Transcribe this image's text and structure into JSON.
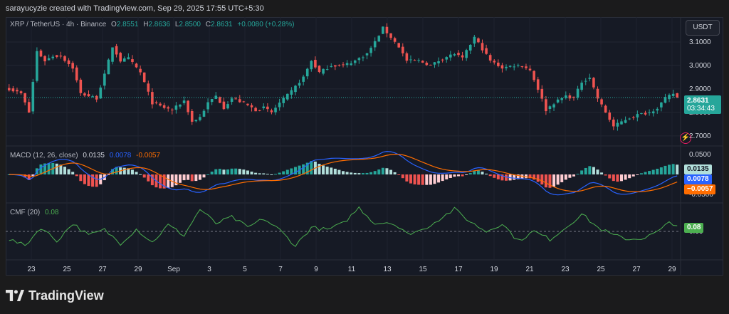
{
  "header": {
    "text": "sarayucyzie created with TradingView.com, Sep 29, 2025 17:55 UTC+5:30"
  },
  "brand": {
    "name": "TradingView"
  },
  "currency_button": "USDT",
  "legend": {
    "symbol": "XRP / TetherUS · 4h · Binance",
    "o_label": "O",
    "o_value": "2.8551",
    "h_label": "H",
    "h_value": "2.8636",
    "l_label": "L",
    "l_value": "2.8500",
    "c_label": "C",
    "c_value": "2.8631",
    "change": "+0.0080 (+0.28%)",
    "macd_label": "MACD (12, 26, close)",
    "macd_hist": "0.0135",
    "macd_line": "0.0078",
    "macd_signal": "-0.0057",
    "cmf_label": "CMF (20)",
    "cmf_value": "0.08"
  },
  "price_tag": {
    "price": "2.8631",
    "countdown": "03:34:43"
  },
  "macd_tags": {
    "hist": "0.0135",
    "macd": "0.0078",
    "signal": "−0.0057"
  },
  "cmf_tag": "0.08",
  "colors": {
    "up": "#26a69a",
    "down": "#ef5350",
    "macd": "#2962ff",
    "signal": "#ff6d00",
    "cmf": "#4caf50",
    "bg": "#161a25"
  },
  "chart_data": [
    {
      "type": "candlestick",
      "title": "XRP / TetherUS · 4h · Binance",
      "x_tick_labels": [
        "23",
        "25",
        "27",
        "29",
        "Sep",
        "3",
        "5",
        "7",
        "9",
        "11",
        "13",
        "15",
        "17",
        "19",
        "21",
        "23",
        "25",
        "27",
        "29"
      ],
      "y_tick_labels": [
        "3.1000",
        "3.0000",
        "2.9000",
        "2.8000",
        "2.7000"
      ],
      "ylim": [
        2.66,
        3.2
      ],
      "last_price": 2.8631,
      "keypoints": [
        [
          0,
          2.9
        ],
        [
          3,
          2.88
        ],
        [
          5,
          2.8
        ],
        [
          7,
          3.06
        ],
        [
          9,
          3.02
        ],
        [
          11,
          3.04
        ],
        [
          13,
          3.04
        ],
        [
          16,
          2.99
        ],
        [
          18,
          2.88
        ],
        [
          22,
          2.86
        ],
        [
          24,
          2.96
        ],
        [
          26,
          3.08
        ],
        [
          28,
          3.02
        ],
        [
          30,
          3.03
        ],
        [
          33,
          2.97
        ],
        [
          36,
          2.84
        ],
        [
          39,
          2.82
        ],
        [
          41,
          2.81
        ],
        [
          44,
          2.85
        ],
        [
          46,
          2.76
        ],
        [
          48,
          2.78
        ],
        [
          50,
          2.84
        ],
        [
          52,
          2.87
        ],
        [
          54,
          2.82
        ],
        [
          56,
          2.86
        ],
        [
          59,
          2.84
        ],
        [
          62,
          2.81
        ],
        [
          64,
          2.82
        ],
        [
          66,
          2.8
        ],
        [
          68,
          2.84
        ],
        [
          71,
          2.89
        ],
        [
          74,
          2.95
        ],
        [
          76,
          3.02
        ],
        [
          78,
          2.97
        ],
        [
          81,
          3.0
        ],
        [
          84,
          3.0
        ],
        [
          87,
          3.02
        ],
        [
          90,
          3.05
        ],
        [
          92,
          3.1
        ],
        [
          94,
          3.16
        ],
        [
          96,
          3.12
        ],
        [
          98,
          3.08
        ],
        [
          100,
          3.02
        ],
        [
          103,
          3.02
        ],
        [
          106,
          3.0
        ],
        [
          109,
          3.03
        ],
        [
          112,
          3.05
        ],
        [
          114,
          3.03
        ],
        [
          117,
          3.12
        ],
        [
          119,
          3.07
        ],
        [
          121,
          3.02
        ],
        [
          124,
          2.99
        ],
        [
          127,
          3.0
        ],
        [
          129,
          3.0
        ],
        [
          131,
          2.98
        ],
        [
          133,
          2.9
        ],
        [
          135,
          2.81
        ],
        [
          137,
          2.84
        ],
        [
          140,
          2.87
        ],
        [
          142,
          2.86
        ],
        [
          144,
          2.93
        ],
        [
          146,
          2.95
        ],
        [
          148,
          2.86
        ],
        [
          150,
          2.8
        ],
        [
          152,
          2.74
        ],
        [
          155,
          2.77
        ],
        [
          158,
          2.79
        ],
        [
          161,
          2.8
        ],
        [
          163,
          2.82
        ],
        [
          165,
          2.86
        ],
        [
          167,
          2.88
        ],
        [
          168,
          2.8631
        ]
      ]
    },
    {
      "type": "histogram+line",
      "title": "MACD (12, 26, close)",
      "series": [
        {
          "name": "Histogram",
          "last": 0.0135
        },
        {
          "name": "MACD",
          "last": 0.0078
        },
        {
          "name": "Signal",
          "last": -0.0057
        }
      ],
      "y_tick_labels": [
        "0.0500",
        "-0.0500"
      ],
      "ylim": [
        -0.07,
        0.07
      ]
    },
    {
      "type": "line",
      "title": "CMF (20)",
      "series": [
        {
          "name": "CMF",
          "last": 0.08
        }
      ],
      "y_tick_labels": [
        "0.00"
      ],
      "zero_line": "dashed",
      "ylim": [
        -0.35,
        0.35
      ],
      "keypoints": [
        [
          0,
          -0.1
        ],
        [
          4,
          -0.18
        ],
        [
          8,
          0.05
        ],
        [
          12,
          -0.12
        ],
        [
          16,
          0.1
        ],
        [
          20,
          -0.05
        ],
        [
          24,
          0.02
        ],
        [
          28,
          -0.15
        ],
        [
          32,
          0.03
        ],
        [
          36,
          -0.14
        ],
        [
          40,
          0.08
        ],
        [
          44,
          -0.05
        ],
        [
          48,
          0.28
        ],
        [
          52,
          0.1
        ],
        [
          56,
          0.18
        ],
        [
          60,
          0.05
        ],
        [
          64,
          0.16
        ],
        [
          68,
          0.02
        ],
        [
          72,
          -0.18
        ],
        [
          76,
          0.05
        ],
        [
          80,
          0.02
        ],
        [
          84,
          0.1
        ],
        [
          88,
          0.3
        ],
        [
          92,
          0.1
        ],
        [
          96,
          0.12
        ],
        [
          100,
          -0.03
        ],
        [
          104,
          0.02
        ],
        [
          108,
          0.15
        ],
        [
          112,
          0.28
        ],
        [
          116,
          0.12
        ],
        [
          120,
          0.0
        ],
        [
          124,
          0.1
        ],
        [
          128,
          -0.12
        ],
        [
          132,
          0.0
        ],
        [
          136,
          -0.1
        ],
        [
          140,
          0.05
        ],
        [
          144,
          0.22
        ],
        [
          148,
          0.05
        ],
        [
          152,
          -0.05
        ],
        [
          156,
          -0.1
        ],
        [
          160,
          -0.08
        ],
        [
          164,
          0.02
        ],
        [
          166,
          0.12
        ],
        [
          168,
          0.08
        ]
      ]
    }
  ]
}
